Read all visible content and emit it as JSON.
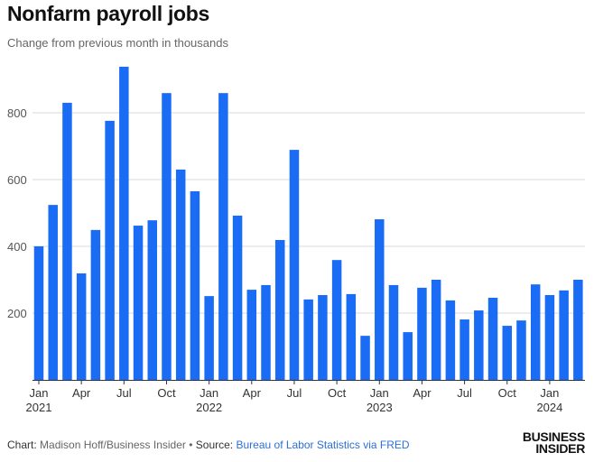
{
  "chart_data": {
    "type": "bar",
    "title": "Nonfarm payroll jobs",
    "subtitle": "Change from previous month in thousands",
    "categories": [
      "Jan 2021",
      "Feb 2021",
      "Mar 2021",
      "Apr 2021",
      "May 2021",
      "Jun 2021",
      "Jul 2021",
      "Aug 2021",
      "Sep 2021",
      "Oct 2021",
      "Nov 2021",
      "Dec 2021",
      "Jan 2022",
      "Feb 2022",
      "Mar 2022",
      "Apr 2022",
      "May 2022",
      "Jun 2022",
      "Jul 2022",
      "Aug 2022",
      "Sep 2022",
      "Oct 2022",
      "Nov 2022",
      "Dec 2022",
      "Jan 2023",
      "Feb 2023",
      "Mar 2023",
      "Apr 2023",
      "May 2023",
      "Jun 2023",
      "Jul 2023",
      "Aug 2023",
      "Sep 2023",
      "Oct 2023",
      "Nov 2023",
      "Dec 2023",
      "Jan 2024",
      "Feb 2024",
      "Mar 2024"
    ],
    "values": [
      400,
      524,
      830,
      319,
      449,
      776,
      938,
      462,
      478,
      859,
      630,
      565,
      251,
      859,
      492,
      270,
      284,
      419,
      689,
      241,
      254,
      359,
      257,
      132,
      481,
      284,
      143,
      276,
      300,
      238,
      181,
      208,
      246,
      162,
      178,
      286,
      254,
      268,
      300
    ],
    "x_tick_labels": [
      {
        "index": 0,
        "month": "Jan",
        "year": "2021"
      },
      {
        "index": 3,
        "month": "Apr"
      },
      {
        "index": 6,
        "month": "Jul"
      },
      {
        "index": 9,
        "month": "Oct"
      },
      {
        "index": 12,
        "month": "Jan",
        "year": "2022"
      },
      {
        "index": 15,
        "month": "Apr"
      },
      {
        "index": 18,
        "month": "Jul"
      },
      {
        "index": 21,
        "month": "Oct"
      },
      {
        "index": 24,
        "month": "Jan",
        "year": "2023"
      },
      {
        "index": 27,
        "month": "Apr"
      },
      {
        "index": 30,
        "month": "Jul"
      },
      {
        "index": 33,
        "month": "Oct"
      },
      {
        "index": 36,
        "month": "Jan",
        "year": "2024"
      }
    ],
    "y_ticks": [
      200,
      400,
      600,
      800
    ],
    "ylim": [
      0,
      950
    ],
    "grid": true,
    "bar_color": "#1a6cf5"
  },
  "footer": {
    "chart_label": "Chart:",
    "chart_author": "Madison Hoff/Business Insider",
    "bullet": "•",
    "source_label": "Source:",
    "source_link": "Bureau of Labor Statistics via FRED"
  },
  "logo": {
    "line1": "BUSINESS",
    "line2": "INSIDER"
  }
}
